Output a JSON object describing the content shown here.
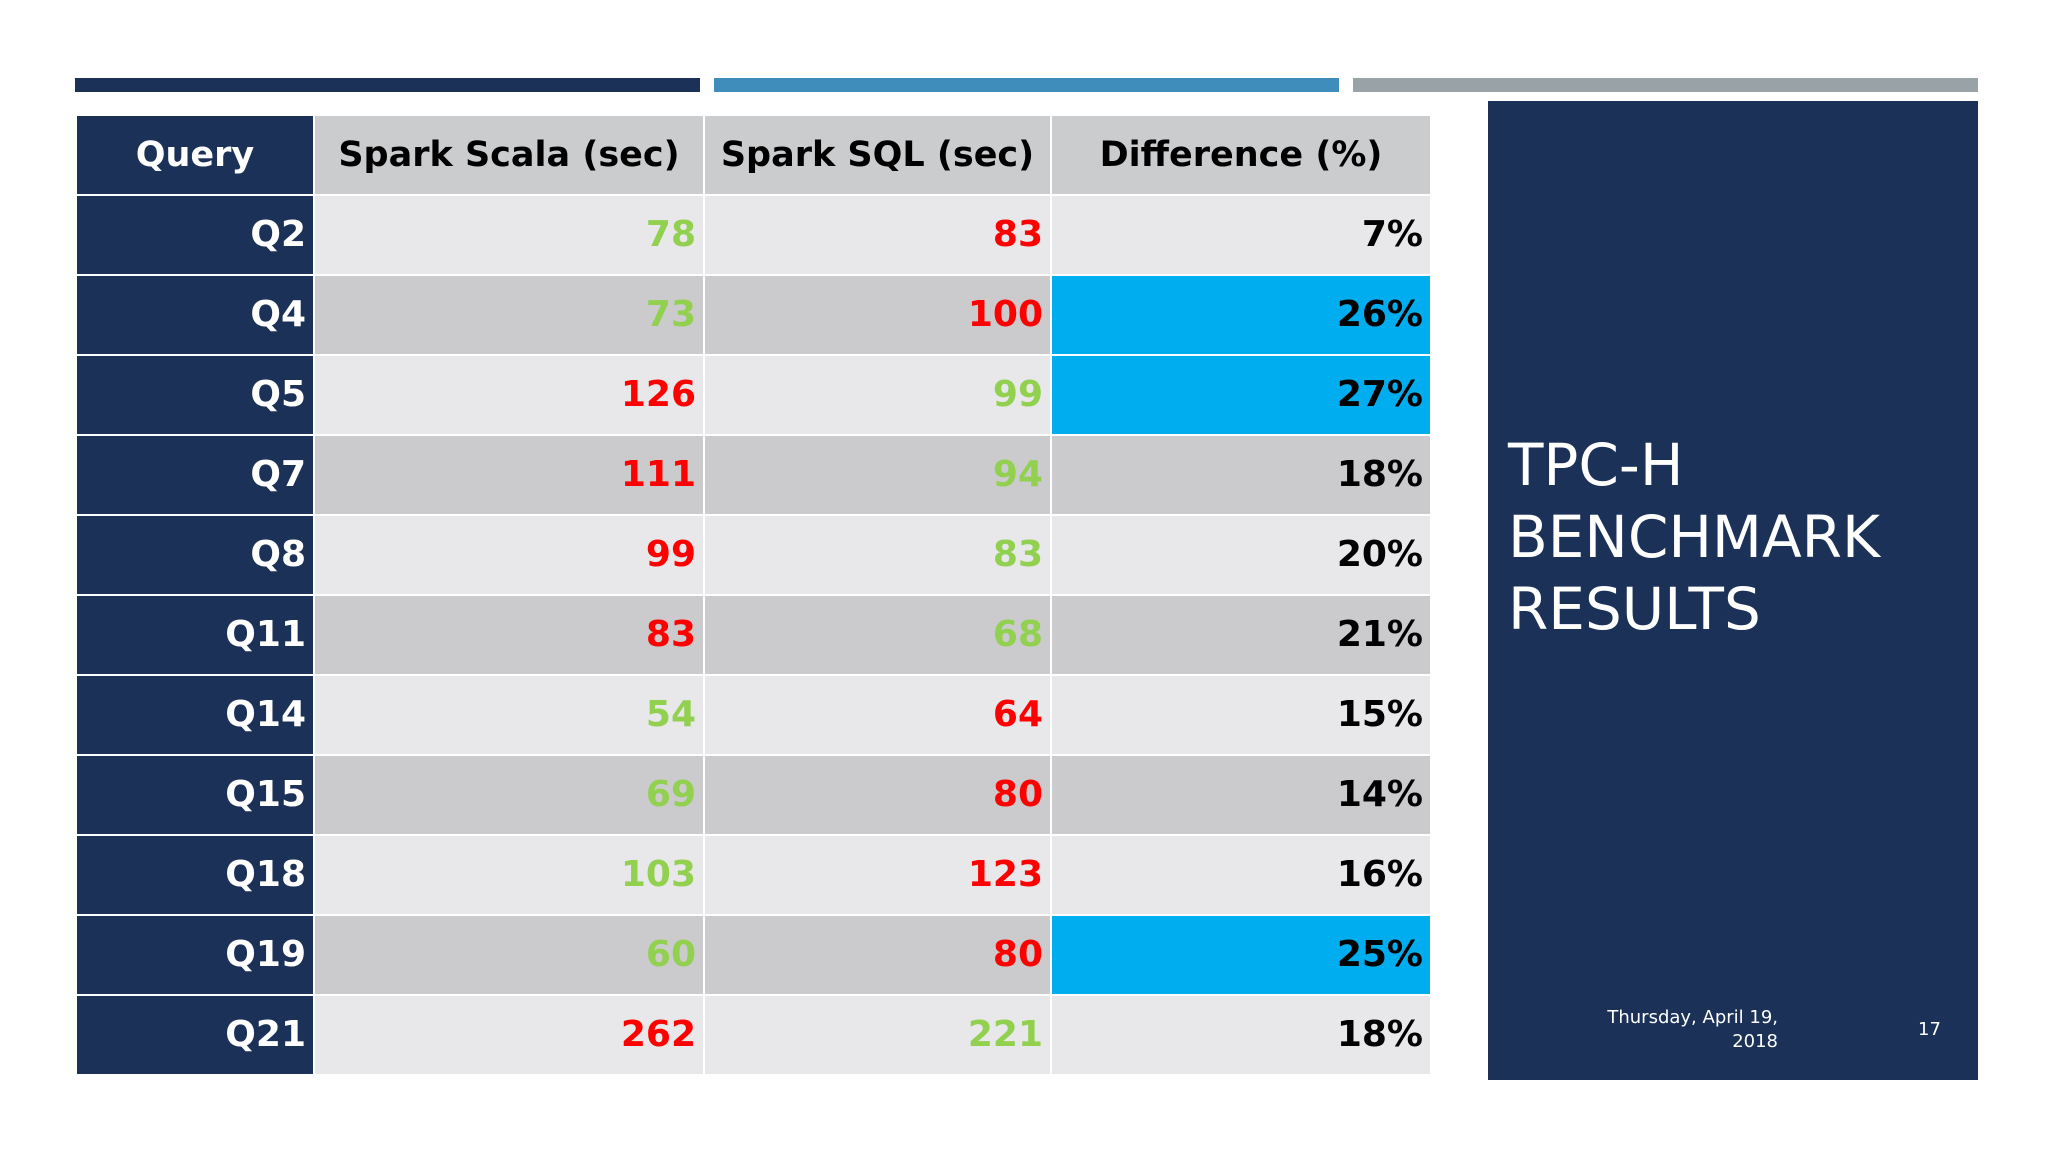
{
  "colors": {
    "navy": "#1b3157",
    "blue_bar": "#3e8dbb",
    "gray_bar": "#98a2a7",
    "highlight": "#00aeef",
    "faster": "#92d050",
    "slower": "#ff0000"
  },
  "table": {
    "headers": [
      "Query",
      "Spark Scala (sec)",
      "Spark SQL (sec)",
      "Difference (%)"
    ],
    "rows": [
      {
        "query": "Q2",
        "scala": "78",
        "sql": "83",
        "diff": "7%",
        "faster": "scala",
        "highlight": false
      },
      {
        "query": "Q4",
        "scala": "73",
        "sql": "100",
        "diff": "26%",
        "faster": "scala",
        "highlight": true
      },
      {
        "query": "Q5",
        "scala": "126",
        "sql": "99",
        "diff": "27%",
        "faster": "sql",
        "highlight": true
      },
      {
        "query": "Q7",
        "scala": "111",
        "sql": "94",
        "diff": "18%",
        "faster": "sql",
        "highlight": false
      },
      {
        "query": "Q8",
        "scala": "99",
        "sql": "83",
        "diff": "20%",
        "faster": "sql",
        "highlight": false
      },
      {
        "query": "Q11",
        "scala": "83",
        "sql": "68",
        "diff": "21%",
        "faster": "sql",
        "highlight": false
      },
      {
        "query": "Q14",
        "scala": "54",
        "sql": "64",
        "diff": "15%",
        "faster": "scala",
        "highlight": false
      },
      {
        "query": "Q15",
        "scala": "69",
        "sql": "80",
        "diff": "14%",
        "faster": "scala",
        "highlight": false
      },
      {
        "query": "Q18",
        "scala": "103",
        "sql": "123",
        "diff": "16%",
        "faster": "scala",
        "highlight": false
      },
      {
        "query": "Q19",
        "scala": "60",
        "sql": "80",
        "diff": "25%",
        "faster": "scala",
        "highlight": true
      },
      {
        "query": "Q21",
        "scala": "262",
        "sql": "221",
        "diff": "18%",
        "faster": "sql",
        "highlight": false
      }
    ]
  },
  "side": {
    "title_lines": [
      "TPC-H",
      "BENCHMARK",
      "RESULTS"
    ],
    "date_line1": "Thursday, April 19,",
    "date_line2": "2018",
    "page_number": "17"
  }
}
